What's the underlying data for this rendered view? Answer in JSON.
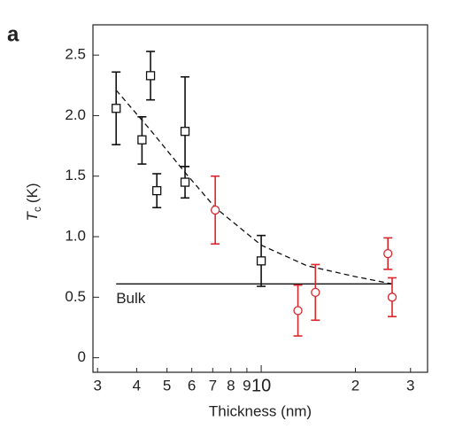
{
  "chart_data": {
    "type": "scatter",
    "title": "a",
    "ylabel": {
      "main": "T",
      "sub": "c",
      "unit": "(K)"
    },
    "xlabel": "Thickness (nm)",
    "xscale": "log",
    "xlim": [
      2.9,
      34
    ],
    "ylim": [
      -0.12,
      2.75
    ],
    "xticks": [
      3,
      4,
      5,
      6,
      7,
      8,
      9,
      10,
      {
        "value": 20,
        "label": "2"
      },
      {
        "value": 30,
        "label": "3"
      }
    ],
    "yticks": [
      0,
      0.5,
      {
        "value": 1,
        "label": "1.0"
      },
      1.5,
      {
        "value": 2,
        "label": "2.0"
      },
      2.5
    ],
    "series": [
      {
        "marker": "square",
        "color": "#111111",
        "x": [
          3.44,
          4.16,
          4.43,
          4.64,
          5.71,
          5.71,
          10
        ],
        "values": [
          2.06,
          1.8,
          2.33,
          1.38,
          1.87,
          1.45,
          0.8
        ],
        "err_high": [
          0.3,
          0.19,
          0.2,
          0.14,
          0.45,
          0.13,
          0.21
        ],
        "err_low": [
          0.3,
          0.2,
          0.2,
          0.14,
          0.29,
          0.13,
          0.21
        ]
      },
      {
        "marker": "circle",
        "color": "#d9262c",
        "x": [
          7.13,
          13.1,
          14.9,
          25.4,
          26.2
        ],
        "values": [
          1.22,
          0.39,
          0.54,
          0.86,
          0.5
        ],
        "err_high": [
          0.28,
          0.21,
          0.23,
          0.13,
          0.16
        ],
        "err_low": [
          0.28,
          0.21,
          0.23,
          0.13,
          0.16
        ]
      }
    ],
    "fit": {
      "color": "#111111",
      "dash": true,
      "x": [
        3.44,
        4.43,
        5.71,
        7.13,
        10,
        14,
        20,
        26.2
      ],
      "values": [
        2.21,
        1.88,
        1.53,
        1.24,
        0.93,
        0.76,
        0.67,
        0.61
      ]
    },
    "bulk": {
      "label": "Bulk",
      "value": 0.61,
      "x": [
        3.44,
        26.2
      ],
      "color": "#111111"
    }
  }
}
